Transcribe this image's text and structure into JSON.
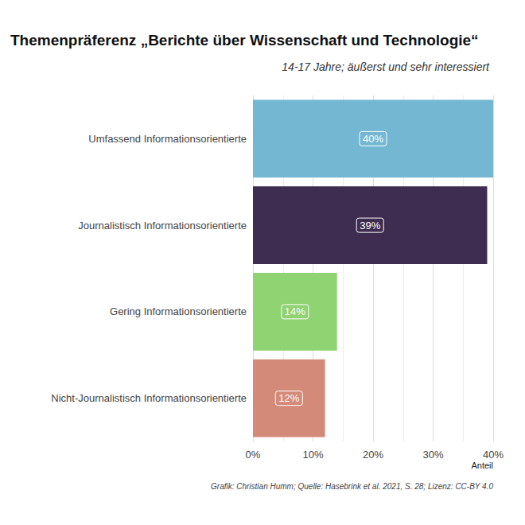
{
  "chart_data": {
    "type": "bar",
    "title": "Themenpräferenz „Berichte über Wissenschaft und Technologie“",
    "subtitle": "14-17 Jahre; äußerst und sehr interessiert",
    "xlabel": "Anteil",
    "annotations": [
      "Grafik: Christian Humm; Quelle: Hasebrink et al. 2021, S. 28; Lizenz: CC-BY 4.0"
    ],
    "categories": [
      "Umfassend Informationsorientierte",
      "Journalistisch Informationsorientierte",
      "Gering Informationsorientierte",
      "Nicht-Journalistisch Informationsorientierte"
    ],
    "values": [
      40,
      39,
      14,
      12
    ],
    "value_labels": [
      "40%",
      "39%",
      "14%",
      "12%"
    ],
    "colors": [
      "#74b7d2",
      "#3f2d51",
      "#8fd372",
      "#d48a78"
    ],
    "xlim": [
      0,
      40
    ],
    "xticks": [
      {
        "value": 0,
        "label": "0%"
      },
      {
        "value": 10,
        "label": "10%"
      },
      {
        "value": 20,
        "label": "20%"
      },
      {
        "value": 30,
        "label": "30%"
      },
      {
        "value": 40,
        "label": "40%"
      }
    ],
    "orientation": "horizontal",
    "data_labels": true,
    "grid": true
  }
}
